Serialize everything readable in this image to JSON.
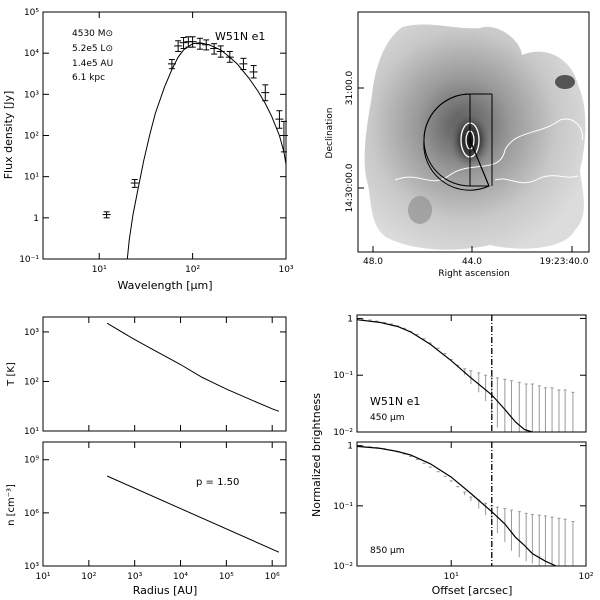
{
  "chart_data": [
    {
      "id": "sed",
      "type": "line",
      "title": "W51N e1",
      "annotations": [
        "4530 M⊙",
        "5.2e5 L⊙",
        "1.4e5 AU",
        "6.1 kpc"
      ],
      "xlabel": "Wavelength [μm]",
      "ylabel": "Flux density [Jy]",
      "xscale": "log",
      "yscale": "log",
      "xlim": [
        2.5,
        1000
      ],
      "ylim": [
        0.1,
        100000
      ],
      "xticks": [
        {
          "v": 10,
          "label": "10¹"
        },
        {
          "v": 100,
          "label": "10²"
        },
        {
          "v": 1000,
          "label": "10³"
        }
      ],
      "yticks": [
        {
          "v": 0.1,
          "label": "10⁻¹"
        },
        {
          "v": 1,
          "label": "1"
        },
        {
          "v": 10,
          "label": "10¹"
        },
        {
          "v": 100,
          "label": "10²"
        },
        {
          "v": 1000,
          "label": "10³"
        },
        {
          "v": 10000,
          "label": "10⁴"
        },
        {
          "v": 100000,
          "label": "10⁵"
        }
      ],
      "model": {
        "x": [
          20,
          21,
          23,
          26,
          30,
          35,
          40,
          50,
          60,
          70,
          80,
          100,
          120,
          150,
          200,
          250,
          300,
          400,
          500,
          600,
          700,
          850,
          950,
          1000
        ],
        "y": [
          0.1,
          0.3,
          1.2,
          5,
          25,
          110,
          350,
          1500,
          4000,
          8000,
          12000,
          17000,
          18000,
          16000,
          12000,
          8000,
          5500,
          2500,
          1200,
          600,
          300,
          100,
          40,
          20
        ]
      },
      "points": [
        {
          "x": 12,
          "y": 1.2,
          "lo": 1.0,
          "hi": 1.4
        },
        {
          "x": 24,
          "y": 7,
          "lo": 5.5,
          "hi": 8.5
        },
        {
          "x": 60,
          "y": 5500,
          "lo": 4200,
          "hi": 7000
        },
        {
          "x": 70,
          "y": 15000,
          "lo": 11000,
          "hi": 20000
        },
        {
          "x": 80,
          "y": 18000,
          "lo": 13000,
          "hi": 24000
        },
        {
          "x": 90,
          "y": 19000,
          "lo": 14000,
          "hi": 25000
        },
        {
          "x": 100,
          "y": 19000,
          "lo": 14000,
          "hi": 25000
        },
        {
          "x": 120,
          "y": 17000,
          "lo": 12500,
          "hi": 23000
        },
        {
          "x": 140,
          "y": 16000,
          "lo": 12000,
          "hi": 21000
        },
        {
          "x": 170,
          "y": 13000,
          "lo": 9500,
          "hi": 17000
        },
        {
          "x": 200,
          "y": 11000,
          "lo": 8000,
          "hi": 15000
        },
        {
          "x": 250,
          "y": 8000,
          "lo": 6000,
          "hi": 11000
        },
        {
          "x": 350,
          "y": 5500,
          "lo": 4000,
          "hi": 7500
        },
        {
          "x": 450,
          "y": 3500,
          "lo": 2500,
          "hi": 5000
        },
        {
          "x": 600,
          "y": 1100,
          "lo": 700,
          "hi": 1700
        },
        {
          "x": 850,
          "y": 250,
          "lo": 150,
          "hi": 400
        },
        {
          "x": 950,
          "y": 100,
          "lo": 40,
          "hi": 220
        }
      ]
    },
    {
      "id": "map",
      "type": "heatmap",
      "xlabel": "Right ascension",
      "ylabel": "Declination",
      "xticks": [
        "48.0",
        "44.0",
        "19:23:40.0"
      ],
      "yticks": [
        "31:00.0",
        "14:30:00.0"
      ],
      "grid": false
    },
    {
      "id": "temperature",
      "type": "line",
      "xlabel": "",
      "ylabel": "T [K]",
      "xscale": "log",
      "yscale": "log",
      "xlim": [
        10,
        2000000
      ],
      "ylim": [
        10,
        2000
      ],
      "yticks": [
        {
          "v": 10,
          "label": "10¹"
        },
        {
          "v": 100,
          "label": "10²"
        },
        {
          "v": 1000,
          "label": "10³"
        }
      ],
      "x": [
        250,
        1000,
        3000,
        10000,
        30000,
        100000,
        300000,
        1000000,
        1400000
      ],
      "y": [
        1500,
        700,
        400,
        220,
        120,
        70,
        45,
        28,
        25
      ]
    },
    {
      "id": "density",
      "type": "line",
      "xlabel": "Radius [AU]",
      "ylabel": "n [cm⁻³]",
      "xscale": "log",
      "yscale": "log",
      "xlim": [
        10,
        2000000
      ],
      "ylim": [
        1000,
        10000000000
      ],
      "xticks": [
        {
          "v": 10,
          "label": "10¹"
        },
        {
          "v": 100,
          "label": "10²"
        },
        {
          "v": 1000,
          "label": "10³"
        },
        {
          "v": 10000,
          "label": "10⁴"
        },
        {
          "v": 100000,
          "label": "10⁵"
        },
        {
          "v": 1000000,
          "label": "10⁶"
        }
      ],
      "yticks": [
        {
          "v": 1000,
          "label": "10³"
        },
        {
          "v": 1000000,
          "label": "10⁶"
        },
        {
          "v": 1000000000,
          "label": "10⁹"
        }
      ],
      "annotation": "p = 1.50",
      "x": [
        250,
        1400000
      ],
      "y": [
        120000000,
        6000
      ]
    },
    {
      "id": "profile450",
      "type": "line",
      "title": "W51N e1",
      "annotation": "450 μm",
      "xlabel": "",
      "ylabel": "Normalized brightness",
      "xscale": "log",
      "yscale": "log",
      "xlim": [
        2,
        100
      ],
      "ylim": [
        0.01,
        1.15
      ],
      "xticks": [
        {
          "v": 10,
          "label": ""
        },
        {
          "v": 100,
          "label": ""
        }
      ],
      "yticks": [
        {
          "v": 0.01,
          "label": "10⁻²"
        },
        {
          "v": 0.1,
          "label": "10⁻¹"
        },
        {
          "v": 1,
          "label": "1"
        }
      ],
      "vline_x": 20,
      "x": [
        2,
        3,
        4,
        5,
        7,
        10,
        14,
        20,
        25,
        30,
        35,
        40
      ],
      "y": [
        0.95,
        0.85,
        0.72,
        0.58,
        0.35,
        0.18,
        0.09,
        0.045,
        0.025,
        0.015,
        0.011,
        0.01
      ],
      "err_x": [
        2.2,
        2.5,
        2.8,
        3.2,
        3.6,
        4,
        4.5,
        5,
        5.6,
        6.3,
        7,
        8,
        9,
        10,
        11.2,
        12.6,
        14,
        16,
        18,
        20,
        22,
        25,
        28,
        32,
        36,
        40,
        45,
        50,
        56,
        63,
        70,
        80
      ],
      "err_y": [
        0.96,
        0.93,
        0.89,
        0.84,
        0.79,
        0.73,
        0.66,
        0.58,
        0.51,
        0.43,
        0.36,
        0.29,
        0.23,
        0.18,
        0.14,
        0.115,
        0.095,
        0.08,
        0.07,
        0.062,
        0.056,
        0.05,
        0.046,
        0.043,
        0.04,
        0.037,
        0.035,
        0.033,
        0.031,
        0.03,
        0.03,
        0.03
      ],
      "err_lo": [
        0.96,
        0.93,
        0.89,
        0.84,
        0.79,
        0.73,
        0.66,
        0.58,
        0.51,
        0.43,
        0.36,
        0.29,
        0.23,
        0.18,
        0.14,
        0.1,
        0.07,
        0.05,
        0.035,
        0.02,
        0.012,
        0.01,
        0.01,
        0.01,
        0.01,
        0.01,
        0.01,
        0.01,
        0.01,
        0.01,
        0.01,
        0.01
      ],
      "err_hi": [
        0.97,
        0.94,
        0.9,
        0.85,
        0.8,
        0.74,
        0.67,
        0.59,
        0.52,
        0.44,
        0.37,
        0.3,
        0.24,
        0.19,
        0.15,
        0.13,
        0.12,
        0.11,
        0.1,
        0.095,
        0.09,
        0.085,
        0.08,
        0.075,
        0.07,
        0.07,
        0.065,
        0.06,
        0.06,
        0.055,
        0.055,
        0.05
      ]
    },
    {
      "id": "profile850",
      "type": "line",
      "annotation": "850 μm",
      "xlabel": "Offset [arcsec]",
      "ylabel": "",
      "xscale": "log",
      "yscale": "log",
      "xlim": [
        2,
        100
      ],
      "ylim": [
        0.01,
        1.15
      ],
      "xticks": [
        {
          "v": 10,
          "label": "10¹"
        },
        {
          "v": 100,
          "label": "10²"
        }
      ],
      "yticks": [
        {
          "v": 0.01,
          "label": "10⁻²"
        },
        {
          "v": 0.1,
          "label": "10⁻¹"
        },
        {
          "v": 1,
          "label": "1"
        }
      ],
      "vline_x": 20,
      "x": [
        2,
        3,
        4,
        5,
        7,
        10,
        14,
        20,
        25,
        30,
        35,
        40,
        50,
        60
      ],
      "y": [
        0.97,
        0.9,
        0.8,
        0.7,
        0.5,
        0.3,
        0.16,
        0.08,
        0.05,
        0.03,
        0.022,
        0.016,
        0.012,
        0.01
      ],
      "err_x": [
        2.2,
        2.5,
        2.8,
        3.2,
        3.6,
        4,
        4.5,
        5,
        5.6,
        6.3,
        7,
        8,
        9,
        10,
        11.2,
        12.6,
        14,
        16,
        18,
        20,
        22,
        25,
        28,
        32,
        36,
        40,
        45,
        50,
        56,
        63,
        70,
        80
      ],
      "err_y": [
        0.97,
        0.95,
        0.92,
        0.88,
        0.83,
        0.78,
        0.72,
        0.65,
        0.58,
        0.5,
        0.43,
        0.36,
        0.3,
        0.25,
        0.2,
        0.16,
        0.13,
        0.11,
        0.095,
        0.085,
        0.075,
        0.068,
        0.062,
        0.057,
        0.052,
        0.048,
        0.045,
        0.042,
        0.04,
        0.038,
        0.036,
        0.034
      ],
      "err_lo": [
        0.97,
        0.95,
        0.92,
        0.88,
        0.83,
        0.78,
        0.72,
        0.65,
        0.58,
        0.5,
        0.43,
        0.36,
        0.3,
        0.25,
        0.2,
        0.15,
        0.12,
        0.09,
        0.07,
        0.05,
        0.035,
        0.025,
        0.018,
        0.014,
        0.012,
        0.011,
        0.01,
        0.01,
        0.01,
        0.01,
        0.01,
        0.01
      ],
      "err_hi": [
        0.98,
        0.96,
        0.93,
        0.89,
        0.84,
        0.79,
        0.73,
        0.66,
        0.59,
        0.51,
        0.44,
        0.37,
        0.31,
        0.26,
        0.21,
        0.17,
        0.14,
        0.125,
        0.11,
        0.1,
        0.095,
        0.09,
        0.085,
        0.08,
        0.075,
        0.072,
        0.07,
        0.068,
        0.065,
        0.062,
        0.06,
        0.055
      ]
    }
  ]
}
